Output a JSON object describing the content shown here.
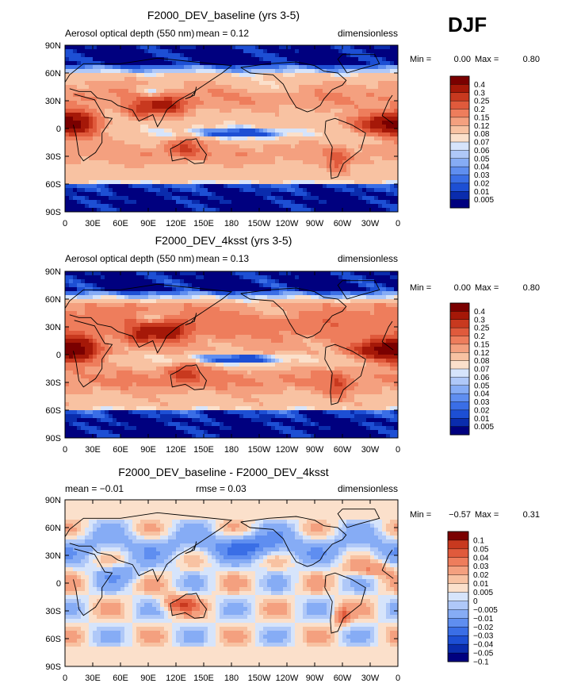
{
  "season": "DJF",
  "colors": {
    "seq": [
      "#00007f",
      "#0a2cad",
      "#1d4fd4",
      "#3a6ee6",
      "#5f8ef0",
      "#86acf5",
      "#afc8f8",
      "#d6e4fb",
      "#fbe0cb",
      "#f8c2a2",
      "#f4a07f",
      "#ee7d5c",
      "#e05a3c",
      "#c8391f",
      "#a51808",
      "#7a0000"
    ],
    "diff": [
      "#00007f",
      "#0a2cad",
      "#1d4fd4",
      "#3a6ee6",
      "#5f8ef0",
      "#86acf5",
      "#afc8f8",
      "#d6e4fb",
      "#fbe0cb",
      "#f8c2a2",
      "#f4a07f",
      "#ee7d5c",
      "#e05a3c",
      "#c8391f",
      "#7a0000"
    ],
    "coast": "#000000"
  },
  "chart_data": [
    {
      "type": "heatmap",
      "title": "F2000_DEV_baseline (yrs 3-5)",
      "left_label": "Aerosol optical depth (550 nm)",
      "center_label": "mean =     0.12",
      "right_label": "dimensionless",
      "stats": {
        "min_label": "Min =",
        "min": "0.00",
        "max_label": "Max =",
        "max": "0.80"
      },
      "lat_ticks": [
        "90N",
        "60N",
        "30N",
        "0",
        "30S",
        "60S",
        "90S"
      ],
      "lon_ticks": [
        "0",
        "30E",
        "60E",
        "90E",
        "120E",
        "150E",
        "180",
        "150W",
        "120W",
        "90W",
        "60W",
        "30W",
        "0"
      ],
      "colorbar_labels": [
        "0.4",
        "0.3",
        "0.25",
        "0.2",
        "0.15",
        "0.12",
        "0.08",
        "0.07",
        "0.06",
        "0.05",
        "0.04",
        "0.03",
        "0.02",
        "0.01",
        "0.005"
      ],
      "palette": "seq",
      "range": [
        0,
        0.8
      ]
    },
    {
      "type": "heatmap",
      "title": "F2000_DEV_4ksst (yrs 3-5)",
      "left_label": "Aerosol optical depth (550 nm)",
      "center_label": "mean =     0.13",
      "right_label": "dimensionless",
      "stats": {
        "min_label": "Min =",
        "min": "0.00",
        "max_label": "Max =",
        "max": "0.80"
      },
      "lat_ticks": [
        "90N",
        "60N",
        "30N",
        "0",
        "30S",
        "60S",
        "90S"
      ],
      "lon_ticks": [
        "0",
        "30E",
        "60E",
        "90E",
        "120E",
        "150E",
        "180",
        "150W",
        "120W",
        "90W",
        "60W",
        "30W",
        "0"
      ],
      "colorbar_labels": [
        "0.4",
        "0.3",
        "0.25",
        "0.2",
        "0.15",
        "0.12",
        "0.08",
        "0.07",
        "0.06",
        "0.05",
        "0.04",
        "0.03",
        "0.02",
        "0.01",
        "0.005"
      ],
      "palette": "seq",
      "range": [
        0,
        0.8
      ]
    },
    {
      "type": "heatmap",
      "title": "F2000_DEV_baseline - F2000_DEV_4ksst",
      "left_label": "mean =   −0.01",
      "center_label": "rmse =     0.03",
      "right_label": "dimensionless",
      "stats": {
        "min_label": "Min =",
        "min": "−0.57",
        "max_label": "Max =",
        "max": "0.31"
      },
      "lat_ticks": [
        "90N",
        "60N",
        "30N",
        "0",
        "30S",
        "60S",
        "90S"
      ],
      "lon_ticks": [
        "0",
        "30E",
        "60E",
        "90E",
        "120E",
        "150E",
        "180",
        "150W",
        "120W",
        "90W",
        "60W",
        "30W",
        "0"
      ],
      "colorbar_labels": [
        "0.1",
        "0.05",
        "0.04",
        "0.03",
        "0.02",
        "0.01",
        "0.005",
        "0",
        "−0.005",
        "−0.01",
        "−0.02",
        "−0.03",
        "−0.04",
        "−0.05",
        "−0.1"
      ],
      "palette": "diff",
      "range": [
        -0.57,
        0.31
      ]
    }
  ]
}
